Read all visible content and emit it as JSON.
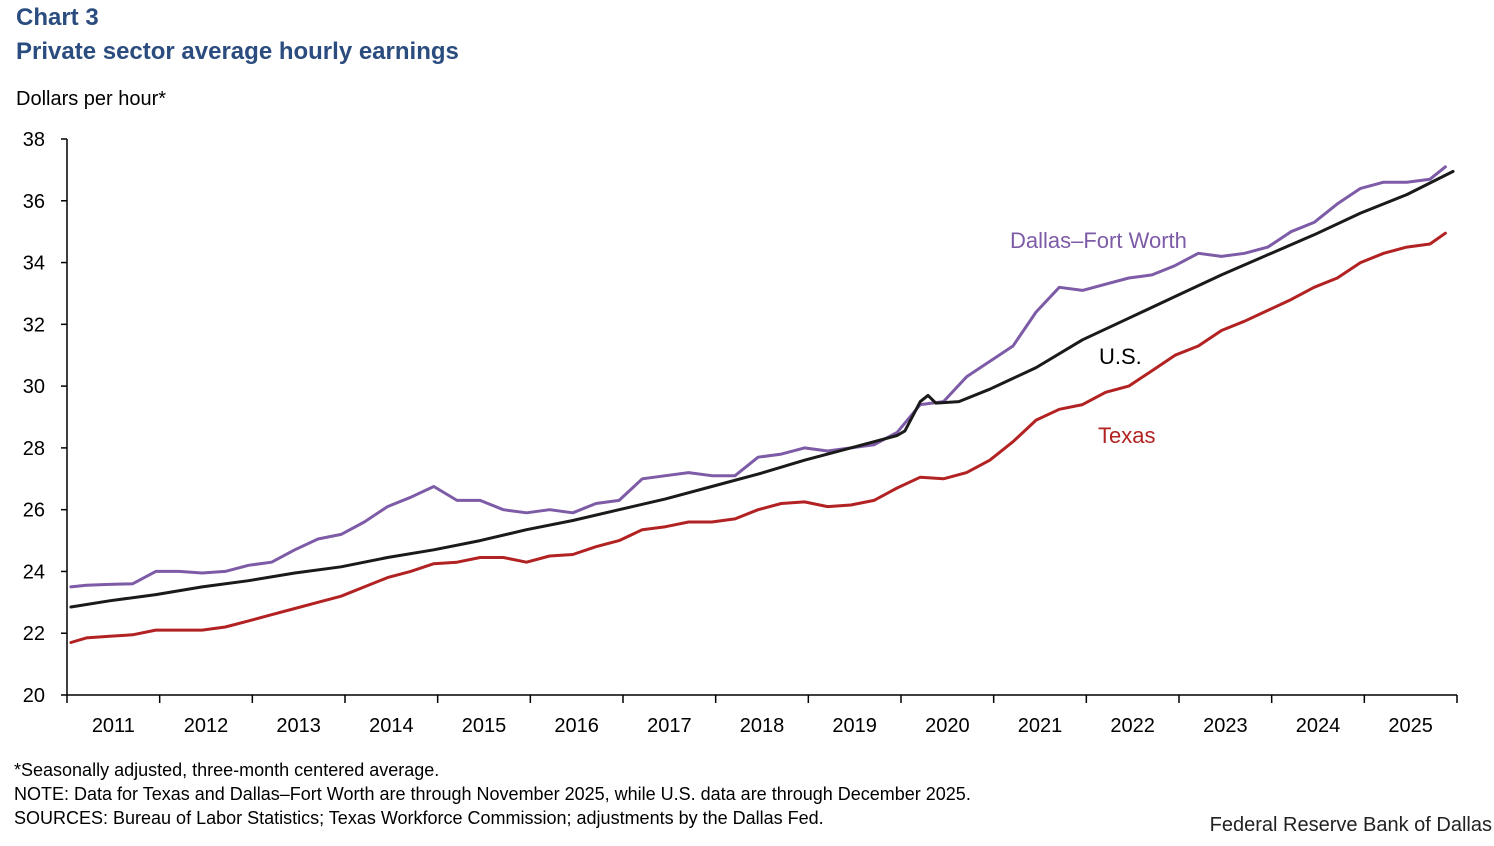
{
  "header": {
    "chart_number": "Chart 3",
    "title": "Private sector average hourly earnings"
  },
  "footer": {
    "note_adjusted": "*Seasonally adjusted, three-month centered average.",
    "note_data": "NOTE: Data for Texas and Dallas–Fort Worth are through November 2025, while U.S. data are through December 2025.",
    "sources": "SOURCES: Bureau of Labor Statistics; Texas Workforce Commission; adjustments by the Dallas Fed.",
    "credit": "Federal Reserve Bank of Dallas"
  },
  "chart_data": {
    "type": "line",
    "title": "Private sector average hourly earnings",
    "ylabel": "Dollars per hour*",
    "xlabel": "",
    "ylim": [
      20,
      38
    ],
    "yticks": [
      20,
      22,
      24,
      26,
      28,
      30,
      32,
      34,
      36,
      38
    ],
    "x_categories": [
      "2011",
      "2012",
      "2013",
      "2014",
      "2015",
      "2016",
      "2017",
      "2018",
      "2019",
      "2020",
      "2021",
      "2022",
      "2023",
      "2024",
      "2025"
    ],
    "grid": false,
    "legend": "inline labels",
    "series": [
      {
        "name": "Dallas–Fort Worth",
        "color": "#7d5ba6",
        "points": [
          [
            "2011-01",
            23.5
          ],
          [
            "2011-03",
            23.55
          ],
          [
            "2011-06",
            23.58
          ],
          [
            "2011-09",
            23.6
          ],
          [
            "2011-12",
            24.0
          ],
          [
            "2012-03",
            24.0
          ],
          [
            "2012-06",
            23.95
          ],
          [
            "2012-09",
            24.0
          ],
          [
            "2012-12",
            24.2
          ],
          [
            "2013-03",
            24.3
          ],
          [
            "2013-06",
            24.7
          ],
          [
            "2013-09",
            25.05
          ],
          [
            "2013-12",
            25.2
          ],
          [
            "2014-03",
            25.6
          ],
          [
            "2014-06",
            26.1
          ],
          [
            "2014-09",
            26.4
          ],
          [
            "2014-12",
            26.75
          ],
          [
            "2015-03",
            26.3
          ],
          [
            "2015-06",
            26.3
          ],
          [
            "2015-09",
            26.0
          ],
          [
            "2015-12",
            25.9
          ],
          [
            "2016-03",
            26.0
          ],
          [
            "2016-06",
            25.9
          ],
          [
            "2016-09",
            26.2
          ],
          [
            "2016-12",
            26.3
          ],
          [
            "2017-03",
            27.0
          ],
          [
            "2017-06",
            27.1
          ],
          [
            "2017-09",
            27.2
          ],
          [
            "2017-12",
            27.1
          ],
          [
            "2018-03",
            27.1
          ],
          [
            "2018-06",
            27.7
          ],
          [
            "2018-09",
            27.8
          ],
          [
            "2018-12",
            28.0
          ],
          [
            "2019-03",
            27.9
          ],
          [
            "2019-06",
            28.0
          ],
          [
            "2019-09",
            28.1
          ],
          [
            "2019-12",
            28.5
          ],
          [
            "2020-03",
            29.4
          ],
          [
            "2020-06",
            29.5
          ],
          [
            "2020-09",
            30.3
          ],
          [
            "2020-12",
            30.8
          ],
          [
            "2021-03",
            31.3
          ],
          [
            "2021-06",
            32.4
          ],
          [
            "2021-09",
            33.2
          ],
          [
            "2021-12",
            33.1
          ],
          [
            "2022-03",
            33.3
          ],
          [
            "2022-06",
            33.5
          ],
          [
            "2022-09",
            33.6
          ],
          [
            "2022-12",
            33.9
          ],
          [
            "2023-03",
            34.3
          ],
          [
            "2023-06",
            34.2
          ],
          [
            "2023-09",
            34.3
          ],
          [
            "2023-12",
            34.5
          ],
          [
            "2024-03",
            35.0
          ],
          [
            "2024-06",
            35.3
          ],
          [
            "2024-09",
            35.9
          ],
          [
            "2024-12",
            36.4
          ],
          [
            "2025-03",
            36.6
          ],
          [
            "2025-06",
            36.6
          ],
          [
            "2025-09",
            36.7
          ],
          [
            "2025-11",
            37.1
          ]
        ]
      },
      {
        "name": "U.S.",
        "color": "#1a1a1a",
        "points": [
          [
            "2011-01",
            22.85
          ],
          [
            "2011-06",
            23.05
          ],
          [
            "2011-12",
            23.25
          ],
          [
            "2012-06",
            23.5
          ],
          [
            "2012-12",
            23.7
          ],
          [
            "2013-06",
            23.95
          ],
          [
            "2013-12",
            24.15
          ],
          [
            "2014-06",
            24.45
          ],
          [
            "2014-12",
            24.7
          ],
          [
            "2015-06",
            25.0
          ],
          [
            "2015-12",
            25.35
          ],
          [
            "2016-06",
            25.65
          ],
          [
            "2016-12",
            26.0
          ],
          [
            "2017-06",
            26.35
          ],
          [
            "2017-12",
            26.75
          ],
          [
            "2018-06",
            27.15
          ],
          [
            "2018-12",
            27.6
          ],
          [
            "2019-06",
            28.0
          ],
          [
            "2019-12",
            28.4
          ],
          [
            "2020-01",
            28.55
          ],
          [
            "2020-03",
            29.5
          ],
          [
            "2020-04",
            29.7
          ],
          [
            "2020-05",
            29.45
          ],
          [
            "2020-08",
            29.5
          ],
          [
            "2020-12",
            29.9
          ],
          [
            "2021-06",
            30.6
          ],
          [
            "2021-12",
            31.5
          ],
          [
            "2022-06",
            32.2
          ],
          [
            "2022-12",
            32.9
          ],
          [
            "2023-06",
            33.6
          ],
          [
            "2023-12",
            34.25
          ],
          [
            "2024-06",
            34.9
          ],
          [
            "2024-12",
            35.6
          ],
          [
            "2025-06",
            36.2
          ],
          [
            "2025-12",
            36.95
          ]
        ]
      },
      {
        "name": "Texas",
        "color": "#b22222",
        "points": [
          [
            "2011-01",
            21.7
          ],
          [
            "2011-03",
            21.85
          ],
          [
            "2011-06",
            21.9
          ],
          [
            "2011-09",
            21.95
          ],
          [
            "2011-12",
            22.1
          ],
          [
            "2012-03",
            22.1
          ],
          [
            "2012-06",
            22.1
          ],
          [
            "2012-09",
            22.2
          ],
          [
            "2012-12",
            22.4
          ],
          [
            "2013-03",
            22.6
          ],
          [
            "2013-06",
            22.8
          ],
          [
            "2013-09",
            23.0
          ],
          [
            "2013-12",
            23.2
          ],
          [
            "2014-03",
            23.5
          ],
          [
            "2014-06",
            23.8
          ],
          [
            "2014-09",
            24.0
          ],
          [
            "2014-12",
            24.25
          ],
          [
            "2015-03",
            24.3
          ],
          [
            "2015-06",
            24.45
          ],
          [
            "2015-09",
            24.45
          ],
          [
            "2015-12",
            24.3
          ],
          [
            "2016-03",
            24.5
          ],
          [
            "2016-06",
            24.55
          ],
          [
            "2016-09",
            24.8
          ],
          [
            "2016-12",
            25.0
          ],
          [
            "2017-03",
            25.35
          ],
          [
            "2017-06",
            25.45
          ],
          [
            "2017-09",
            25.6
          ],
          [
            "2017-12",
            25.6
          ],
          [
            "2018-03",
            25.7
          ],
          [
            "2018-06",
            26.0
          ],
          [
            "2018-09",
            26.2
          ],
          [
            "2018-12",
            26.25
          ],
          [
            "2019-03",
            26.1
          ],
          [
            "2019-06",
            26.15
          ],
          [
            "2019-09",
            26.3
          ],
          [
            "2019-12",
            26.7
          ],
          [
            "2020-03",
            27.05
          ],
          [
            "2020-06",
            27.0
          ],
          [
            "2020-09",
            27.2
          ],
          [
            "2020-12",
            27.6
          ],
          [
            "2021-03",
            28.2
          ],
          [
            "2021-06",
            28.9
          ],
          [
            "2021-09",
            29.25
          ],
          [
            "2021-12",
            29.4
          ],
          [
            "2022-03",
            29.8
          ],
          [
            "2022-06",
            30.0
          ],
          [
            "2022-09",
            30.5
          ],
          [
            "2022-12",
            31.0
          ],
          [
            "2023-03",
            31.3
          ],
          [
            "2023-06",
            31.8
          ],
          [
            "2023-09",
            32.1
          ],
          [
            "2023-12",
            32.45
          ],
          [
            "2024-03",
            32.8
          ],
          [
            "2024-06",
            33.2
          ],
          [
            "2024-09",
            33.5
          ],
          [
            "2024-12",
            34.0
          ],
          [
            "2025-03",
            34.3
          ],
          [
            "2025-06",
            34.5
          ],
          [
            "2025-09",
            34.6
          ],
          [
            "2025-11",
            34.95
          ]
        ]
      }
    ]
  }
}
